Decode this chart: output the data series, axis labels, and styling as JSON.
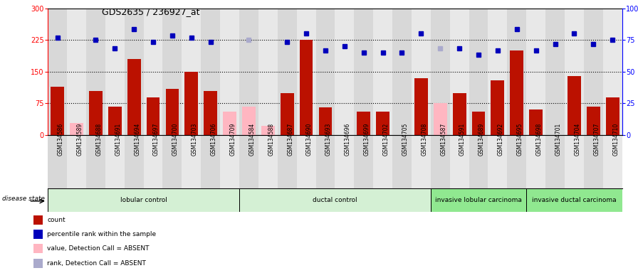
{
  "title": "GDS2635 / 236927_at",
  "samples": [
    "GSM134586",
    "GSM134589",
    "GSM134688",
    "GSM134691",
    "GSM134694",
    "GSM134697",
    "GSM134700",
    "GSM134703",
    "GSM134706",
    "GSM134709",
    "GSM134584",
    "GSM134588",
    "GSM134687",
    "GSM134690",
    "GSM134693",
    "GSM134696",
    "GSM134699",
    "GSM134702",
    "GSM134705",
    "GSM134708",
    "GSM134587",
    "GSM134591",
    "GSM134689",
    "GSM134692",
    "GSM134695",
    "GSM134698",
    "GSM134701",
    "GSM134704",
    "GSM134707",
    "GSM134710"
  ],
  "count_values": [
    115,
    null,
    105,
    68,
    180,
    90,
    110,
    150,
    105,
    null,
    null,
    null,
    100,
    225,
    65,
    null,
    55,
    55,
    null,
    135,
    null,
    100,
    55,
    130,
    200,
    60,
    null,
    140,
    68,
    90
  ],
  "absent_value_values": [
    null,
    28,
    null,
    null,
    null,
    null,
    null,
    null,
    null,
    55,
    68,
    22,
    null,
    null,
    null,
    null,
    null,
    null,
    null,
    null,
    75,
    null,
    null,
    null,
    null,
    null,
    null,
    null,
    null,
    null
  ],
  "rank_values": [
    230,
    null,
    225,
    205,
    250,
    220,
    235,
    230,
    220,
    null,
    null,
    null,
    220,
    240,
    200,
    210,
    195,
    195,
    195,
    240,
    null,
    205,
    190,
    200,
    250,
    200,
    215,
    240,
    215,
    225
  ],
  "absent_rank_values": [
    null,
    null,
    null,
    null,
    null,
    null,
    null,
    null,
    null,
    null,
    225,
    null,
    null,
    null,
    null,
    null,
    null,
    null,
    null,
    null,
    205,
    null,
    null,
    null,
    null,
    null,
    null,
    null,
    null,
    null
  ],
  "groups": [
    {
      "name": "lobular control",
      "start": 0,
      "end": 10
    },
    {
      "name": "ductal control",
      "start": 10,
      "end": 20
    },
    {
      "name": "invasive lobular carcinoma",
      "start": 20,
      "end": 25
    },
    {
      "name": "invasive ductal carcinoma",
      "start": 25,
      "end": 30
    }
  ],
  "group_colors": [
    "#d4f0d4",
    "#d4f0d4",
    "#90e890",
    "#90e890"
  ],
  "ylim_left": [
    0,
    300
  ],
  "ylim_right": [
    0,
    100
  ],
  "yticks_left": [
    0,
    75,
    150,
    225,
    300
  ],
  "yticks_right": [
    0,
    25,
    50,
    75,
    100
  ],
  "hlines": [
    75,
    150,
    225
  ],
  "bar_color": "#bb1100",
  "absent_bar_color": "#ffb6c1",
  "rank_color": "#0000bb",
  "absent_rank_color": "#aaaacc",
  "col_bg_even": "#d8d8d8",
  "col_bg_odd": "#e8e8e8",
  "disease_state_label": "disease state",
  "legend_items": [
    {
      "label": "count",
      "color": "#bb1100"
    },
    {
      "label": "percentile rank within the sample",
      "color": "#0000bb"
    },
    {
      "label": "value, Detection Call = ABSENT",
      "color": "#ffb6c1"
    },
    {
      "label": "rank, Detection Call = ABSENT",
      "color": "#aaaacc"
    }
  ]
}
